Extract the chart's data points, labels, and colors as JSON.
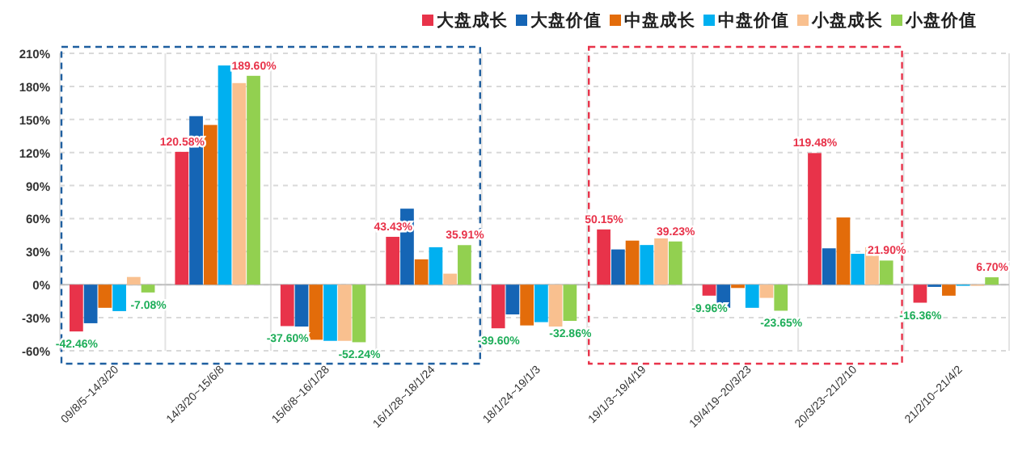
{
  "chart_data": {
    "type": "bar",
    "categories": [
      "09/8/5~14/3/20",
      "14/3/20~15/6/8",
      "15/6/8~16/1/28",
      "16/1/28~18/1/24",
      "18/1/24~19/1/3",
      "19/1/3~19/4/19",
      "19/4/19~20/3/23",
      "20/3/23~21/2/10",
      "21/2/10~21/4/2"
    ],
    "series": [
      {
        "name": "大盘成长",
        "color": "#e8334a",
        "values": [
          -42.46,
          120.58,
          -37.6,
          43.43,
          -39.6,
          50.15,
          -9.96,
          119.48,
          -16.36
        ],
        "value_labels": [
          "-42.46%",
          "120.58%",
          "-37.60%",
          "43.43%",
          "-39.60%",
          "50.15%",
          "-9.96%",
          "119.48%",
          "-16.36%"
        ]
      },
      {
        "name": "大盘价值",
        "color": "#1565b5",
        "values": [
          -35,
          153,
          -38,
          69,
          -27,
          32,
          -21,
          33,
          -2
        ]
      },
      {
        "name": "中盘成长",
        "color": "#e36c0a",
        "values": [
          -21,
          145,
          -50,
          23,
          -37,
          40,
          -3,
          61,
          -10
        ]
      },
      {
        "name": "中盘价值",
        "color": "#00b0f0",
        "values": [
          -24,
          199,
          -51,
          34,
          -34,
          36,
          -21,
          28,
          -1
        ]
      },
      {
        "name": "小盘成长",
        "color": "#f9c08f",
        "values": [
          7,
          183,
          -51,
          10,
          -38,
          42,
          -12,
          34,
          -1
        ]
      },
      {
        "name": "小盘价值",
        "color": "#92d050",
        "values": [
          -7.08,
          189.6,
          -52.24,
          35.91,
          -32.86,
          39.23,
          -23.65,
          21.9,
          6.7
        ],
        "value_labels": [
          "-7.08%",
          "189.60%",
          "-52.24%",
          "35.91%",
          "-32.86%",
          "39.23%",
          "-23.65%",
          "21.90%",
          "6.70%"
        ]
      }
    ],
    "ylim": [
      -60,
      210
    ],
    "yticks": [
      {
        "value": -60,
        "label": "-60%"
      },
      {
        "value": -30,
        "label": "-30%"
      },
      {
        "value": 0,
        "label": "0%"
      },
      {
        "value": 30,
        "label": "30%"
      },
      {
        "value": 60,
        "label": "60%"
      },
      {
        "value": 90,
        "label": "90%"
      },
      {
        "value": 120,
        "label": "120%"
      },
      {
        "value": 150,
        "label": "150%"
      },
      {
        "value": 180,
        "label": "180%"
      },
      {
        "value": 210,
        "label": "210%"
      }
    ],
    "grid": true,
    "legend": "top right"
  }
}
